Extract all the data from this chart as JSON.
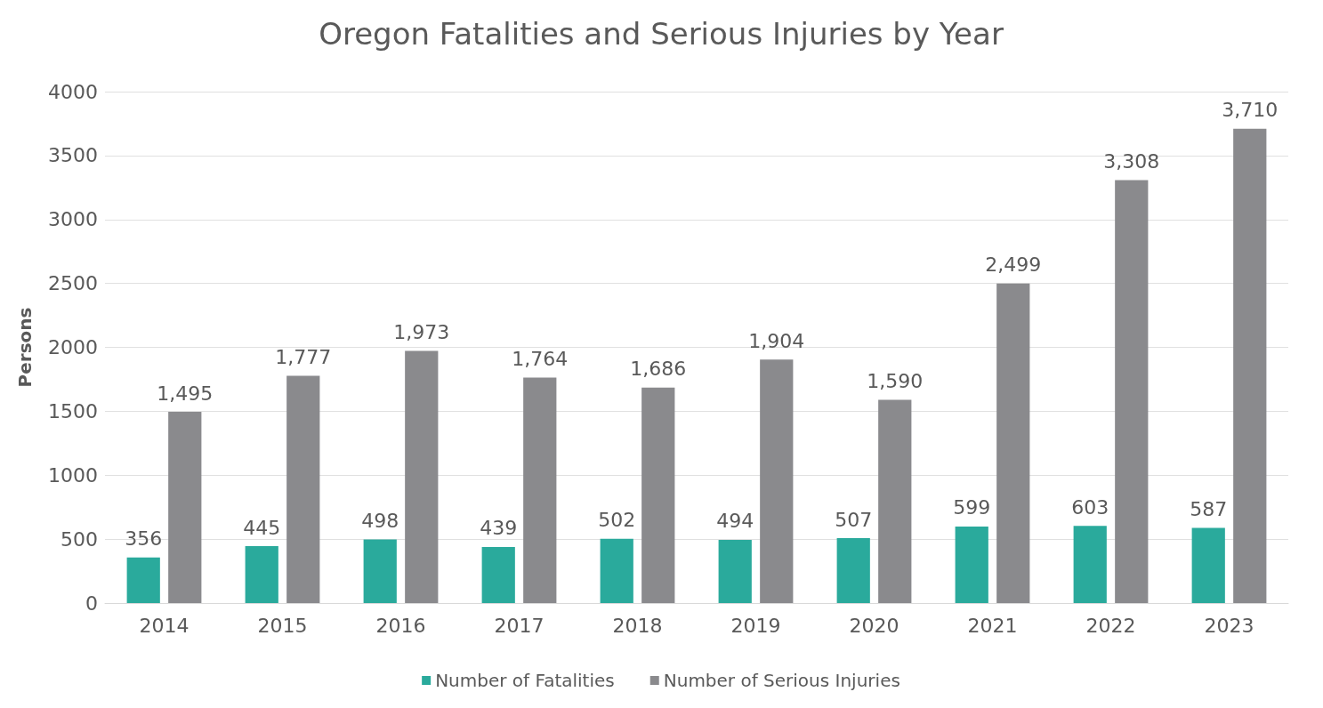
{
  "chart_data": {
    "type": "bar",
    "title": "Oregon Fatalities and Serious Injuries by Year",
    "ylabel": "Persons",
    "categories": [
      "2014",
      "2015",
      "2016",
      "2017",
      "2018",
      "2019",
      "2020",
      "2021",
      "2022",
      "2023"
    ],
    "series": [
      {
        "name": "Number of Fatalities",
        "color": "#2aaa9c",
        "values": [
          356,
          445,
          498,
          439,
          502,
          494,
          507,
          599,
          603,
          587
        ],
        "value_labels": [
          "356",
          "445",
          "498",
          "439",
          "502",
          "494",
          "507",
          "599",
          "603",
          "587"
        ]
      },
      {
        "name": "Number of Serious Injuries",
        "color": "#8a8a8d",
        "values": [
          1495,
          1777,
          1973,
          1764,
          1686,
          1904,
          1590,
          2499,
          3308,
          3710
        ],
        "value_labels": [
          "1,495",
          "1,777",
          "1,973",
          "1,764",
          "1,686",
          "1,904",
          "1,590",
          "2,499",
          "3,308",
          "3,710"
        ]
      }
    ],
    "ylim": [
      0,
      4000
    ],
    "yticks": [
      0,
      500,
      1000,
      1500,
      2000,
      2500,
      3000,
      3500,
      4000
    ],
    "grid": "y",
    "legend": "bottom"
  }
}
